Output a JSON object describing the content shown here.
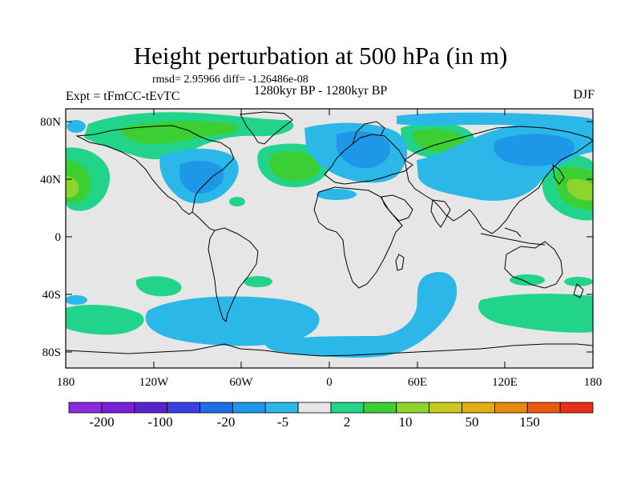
{
  "header": {
    "title": "Height perturbation at 500 hPa (in m)",
    "stats": "rmsd= 2.95966 diff= -1.26486e-08",
    "period": "1280kyr BP - 1280kyr BP",
    "experiment": "Expt = tFmCC-tEvTC",
    "season": "DJF"
  },
  "map": {
    "lat_ticks": [
      "80N",
      "40N",
      "0",
      "40S",
      "80S"
    ],
    "lon_ticks": [
      "180",
      "120W",
      "60W",
      "0",
      "60E",
      "120E",
      "180"
    ],
    "background_color": "#e6e6e6"
  },
  "colorbar": {
    "labels": [
      "-200",
      "-100",
      "-20",
      "-5",
      "2",
      "10",
      "50",
      "150"
    ],
    "colors": [
      "#8a2be2",
      "#7a1fd6",
      "#5a22cc",
      "#3a3fe0",
      "#1e6fe6",
      "#1f97e8",
      "#2bb8e8",
      "#e6e6e6",
      "#22d38a",
      "#3ccf33",
      "#8ed42c",
      "#c8c81e",
      "#e0b010",
      "#e88a10",
      "#ec5a10",
      "#e8301a"
    ]
  },
  "legend_colors": {
    "neg_light": "#2bb8e8",
    "neg_mid": "#1f97e8",
    "pos_light": "#22d38a",
    "pos_mid": "#3ccf33",
    "pos_strong": "#8ed42c"
  }
}
